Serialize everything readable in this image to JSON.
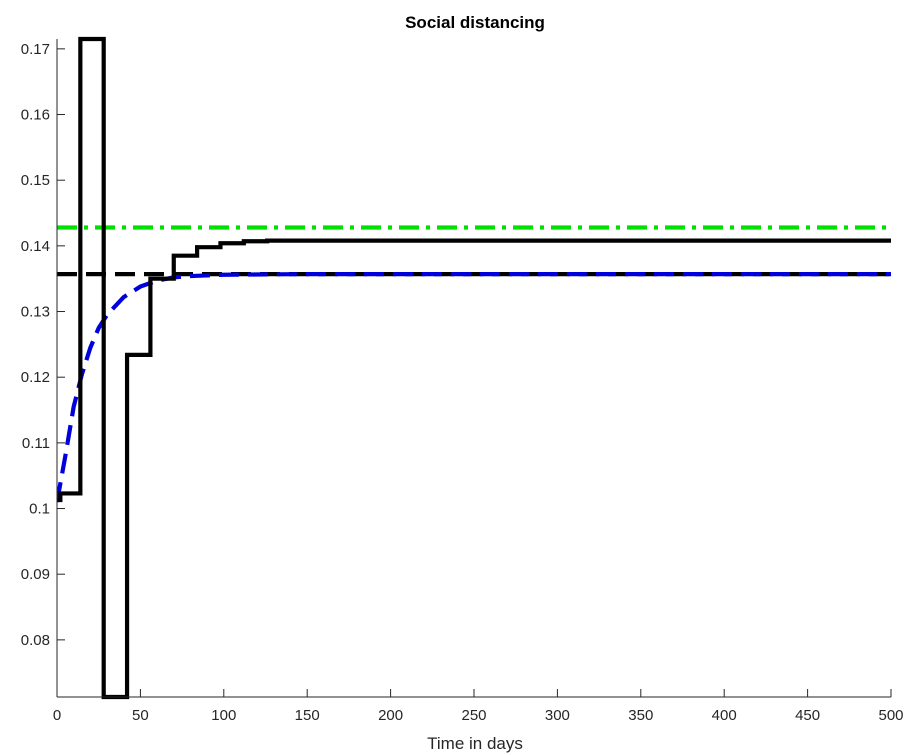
{
  "chart_data": {
    "type": "line",
    "title": "Social distancing",
    "xlabel": "Time in days",
    "ylabel": "",
    "xlim": [
      0,
      500
    ],
    "ylim": [
      0.0713,
      0.1715
    ],
    "xticks": [
      0,
      50,
      100,
      150,
      200,
      250,
      300,
      350,
      400,
      450,
      500
    ],
    "yticks": [
      0.08,
      0.09,
      0.1,
      0.11,
      0.12,
      0.13,
      0.14,
      0.15,
      0.16,
      0.17
    ],
    "xtick_labels": [
      "0",
      "50",
      "100",
      "150",
      "200",
      "250",
      "300",
      "350",
      "400",
      "450",
      "500"
    ],
    "ytick_labels": [
      "0.08",
      "0.09",
      "0.1",
      "0.11",
      "0.12",
      "0.13",
      "0.14",
      "0.15",
      "0.16",
      "0.17"
    ],
    "grid": false,
    "series": [
      {
        "color": "#00e000",
        "style": "dashdot",
        "x": [
          0,
          500
        ],
        "y": [
          0.1428,
          0.1428
        ]
      },
      {
        "color": "#000000",
        "style": "dashed",
        "x": [
          0,
          500
        ],
        "y": [
          0.1357,
          0.1357
        ]
      },
      {
        "color": "#0000dd",
        "style": "dashed",
        "x": [
          0,
          5,
          10,
          15,
          20,
          25,
          30,
          40,
          50,
          60,
          70,
          80,
          100,
          150,
          200,
          300,
          500
        ],
        "y": [
          0.101,
          0.108,
          0.1155,
          0.1205,
          0.1245,
          0.1275,
          0.1295,
          0.1322,
          0.1338,
          0.1347,
          0.1352,
          0.1354,
          0.1356,
          0.1357,
          0.1357,
          0.1357,
          0.1357
        ]
      },
      {
        "color": "#000000",
        "style": "solid",
        "x": [
          0,
          2,
          2,
          14,
          14,
          28,
          28,
          42,
          42,
          56,
          56,
          70,
          70,
          84,
          84,
          98,
          98,
          112,
          112,
          126,
          126,
          500
        ],
        "y": [
          0.1013,
          0.1013,
          0.1023,
          0.1023,
          0.1715,
          0.1715,
          0.0713,
          0.0713,
          0.1234,
          0.1234,
          0.135,
          0.135,
          0.1385,
          0.1385,
          0.1398,
          0.1398,
          0.1404,
          0.1404,
          0.1407,
          0.1407,
          0.1408,
          0.1408
        ]
      }
    ]
  }
}
